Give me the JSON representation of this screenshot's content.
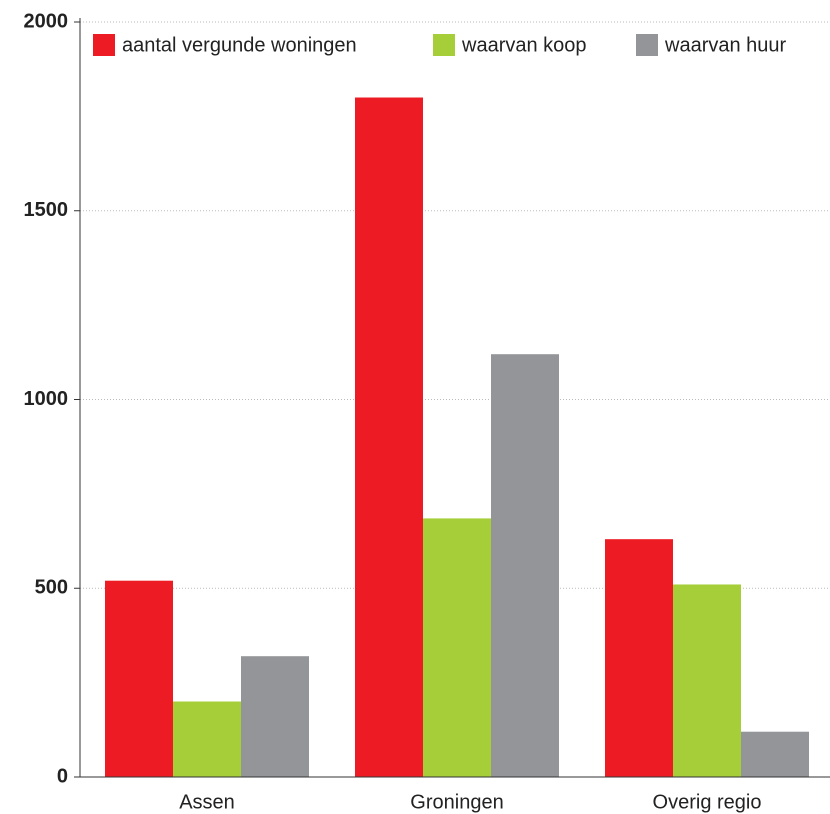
{
  "chart_data": {
    "type": "bar",
    "categories": [
      "Assen",
      "Groningen",
      "Overig regio"
    ],
    "series": [
      {
        "name": "aantal vergunde woningen",
        "color": "#ed1c24",
        "values": [
          520,
          1800,
          630
        ]
      },
      {
        "name": "waarvan koop",
        "color": "#a6ce39",
        "values": [
          200,
          685,
          510
        ]
      },
      {
        "name": "waarvan huur",
        "color": "#939598",
        "values": [
          320,
          1120,
          120
        ]
      }
    ],
    "ylim": [
      0,
      2000
    ],
    "yticks": [
      0,
      500,
      1000,
      1500,
      2000
    ],
    "grid": true,
    "legend": "top"
  }
}
